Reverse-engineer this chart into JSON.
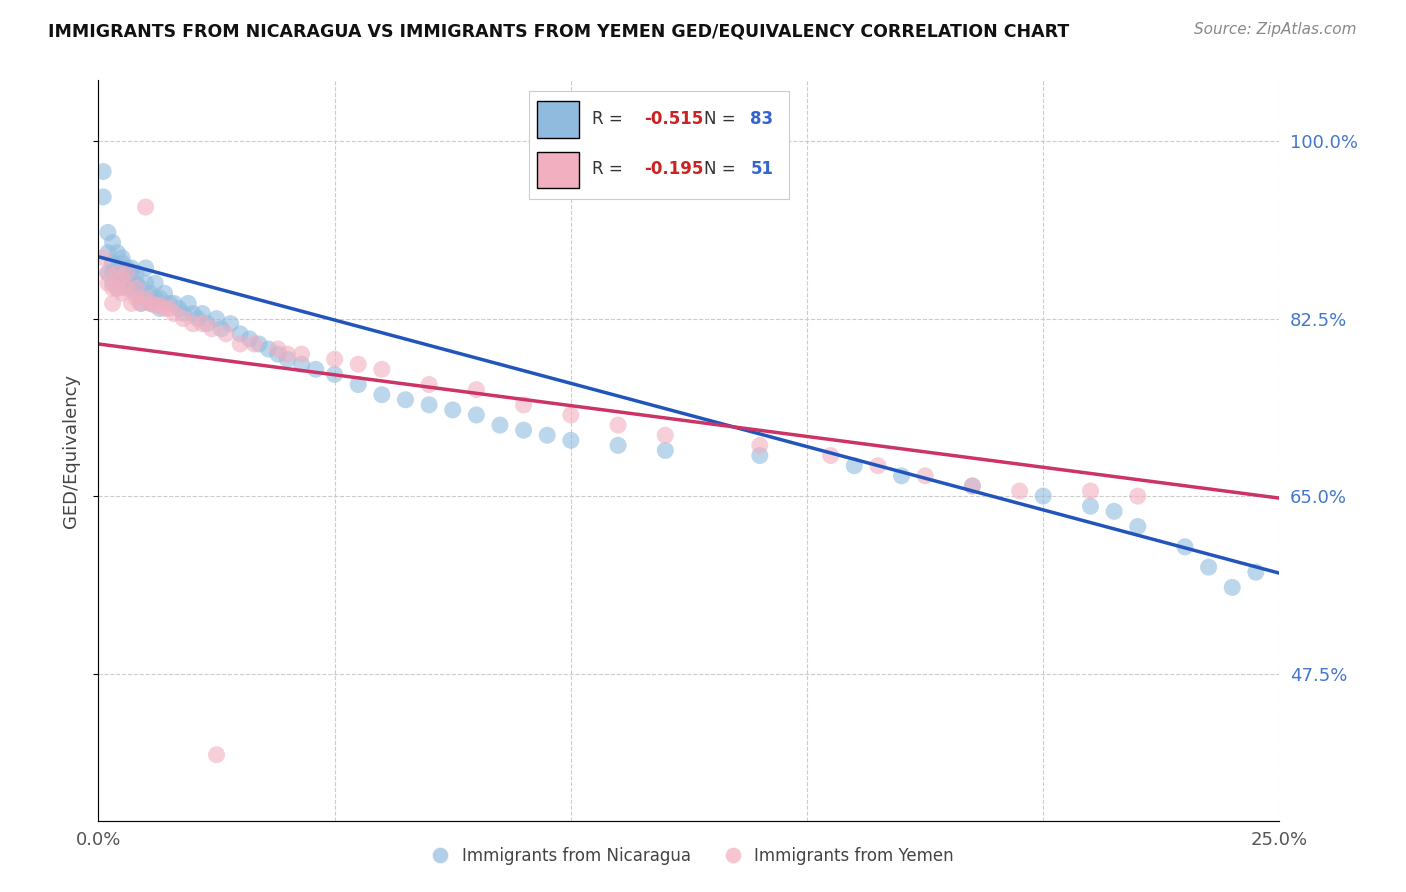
{
  "title": "IMMIGRANTS FROM NICARAGUA VS IMMIGRANTS FROM YEMEN GED/EQUIVALENCY CORRELATION CHART",
  "source": "Source: ZipAtlas.com",
  "ylabel": "GED/Equivalency",
  "ytick_labels": [
    "100.0%",
    "82.5%",
    "65.0%",
    "47.5%"
  ],
  "ytick_values": [
    1.0,
    0.825,
    0.65,
    0.475
  ],
  "xmin": 0.0,
  "xmax": 0.25,
  "ymin": 0.33,
  "ymax": 1.06,
  "blue_color": "#90bbdf",
  "pink_color": "#f2afc0",
  "blue_line_color": "#2255bb",
  "pink_line_color": "#cc3366",
  "R_blue": -0.515,
  "N_blue": 83,
  "R_pink": -0.195,
  "N_pink": 51,
  "legend_label_blue": "Immigrants from Nicaragua",
  "legend_label_pink": "Immigrants from Yemen",
  "blue_line_x0": 0.0,
  "blue_line_y0": 0.886,
  "blue_line_x1": 0.25,
  "blue_line_y1": 0.574,
  "pink_line_x0": 0.0,
  "pink_line_y0": 0.8,
  "pink_line_x1": 0.25,
  "pink_line_y1": 0.648,
  "blue_x": [
    0.001,
    0.001,
    0.002,
    0.002,
    0.002,
    0.003,
    0.003,
    0.003,
    0.003,
    0.004,
    0.004,
    0.004,
    0.005,
    0.005,
    0.005,
    0.005,
    0.006,
    0.006,
    0.006,
    0.006,
    0.007,
    0.007,
    0.007,
    0.008,
    0.008,
    0.008,
    0.009,
    0.009,
    0.01,
    0.01,
    0.01,
    0.011,
    0.011,
    0.012,
    0.012,
    0.013,
    0.013,
    0.014,
    0.015,
    0.016,
    0.017,
    0.018,
    0.019,
    0.02,
    0.021,
    0.022,
    0.023,
    0.025,
    0.026,
    0.028,
    0.03,
    0.032,
    0.034,
    0.036,
    0.038,
    0.04,
    0.043,
    0.046,
    0.05,
    0.055,
    0.06,
    0.065,
    0.07,
    0.075,
    0.08,
    0.085,
    0.09,
    0.095,
    0.1,
    0.11,
    0.12,
    0.14,
    0.16,
    0.17,
    0.185,
    0.2,
    0.21,
    0.215,
    0.22,
    0.23,
    0.235,
    0.24,
    0.245
  ],
  "blue_y": [
    0.97,
    0.945,
    0.89,
    0.87,
    0.91,
    0.88,
    0.86,
    0.9,
    0.87,
    0.89,
    0.875,
    0.855,
    0.885,
    0.87,
    0.86,
    0.88,
    0.87,
    0.865,
    0.855,
    0.875,
    0.87,
    0.855,
    0.875,
    0.86,
    0.85,
    0.87,
    0.855,
    0.84,
    0.875,
    0.86,
    0.845,
    0.85,
    0.84,
    0.86,
    0.845,
    0.845,
    0.835,
    0.85,
    0.84,
    0.84,
    0.835,
    0.83,
    0.84,
    0.83,
    0.825,
    0.83,
    0.82,
    0.825,
    0.815,
    0.82,
    0.81,
    0.805,
    0.8,
    0.795,
    0.79,
    0.785,
    0.78,
    0.775,
    0.77,
    0.76,
    0.75,
    0.745,
    0.74,
    0.735,
    0.73,
    0.72,
    0.715,
    0.71,
    0.705,
    0.7,
    0.695,
    0.69,
    0.68,
    0.67,
    0.66,
    0.65,
    0.64,
    0.635,
    0.62,
    0.6,
    0.58,
    0.56,
    0.575
  ],
  "pink_x": [
    0.001,
    0.002,
    0.002,
    0.003,
    0.003,
    0.004,
    0.004,
    0.005,
    0.005,
    0.006,
    0.006,
    0.007,
    0.008,
    0.008,
    0.009,
    0.01,
    0.011,
    0.012,
    0.013,
    0.014,
    0.016,
    0.018,
    0.02,
    0.022,
    0.024,
    0.027,
    0.03,
    0.033,
    0.038,
    0.043,
    0.05,
    0.055,
    0.06,
    0.07,
    0.08,
    0.09,
    0.1,
    0.11,
    0.12,
    0.14,
    0.155,
    0.165,
    0.175,
    0.185,
    0.195,
    0.21,
    0.22,
    0.01,
    0.015,
    0.04,
    0.025
  ],
  "pink_y": [
    0.885,
    0.86,
    0.87,
    0.855,
    0.84,
    0.87,
    0.855,
    0.865,
    0.85,
    0.87,
    0.855,
    0.84,
    0.855,
    0.845,
    0.84,
    0.845,
    0.84,
    0.838,
    0.838,
    0.835,
    0.83,
    0.825,
    0.82,
    0.82,
    0.815,
    0.81,
    0.8,
    0.8,
    0.795,
    0.79,
    0.785,
    0.78,
    0.775,
    0.76,
    0.755,
    0.74,
    0.73,
    0.72,
    0.71,
    0.7,
    0.69,
    0.68,
    0.67,
    0.66,
    0.655,
    0.655,
    0.65,
    0.935,
    0.835,
    0.79,
    0.395
  ]
}
